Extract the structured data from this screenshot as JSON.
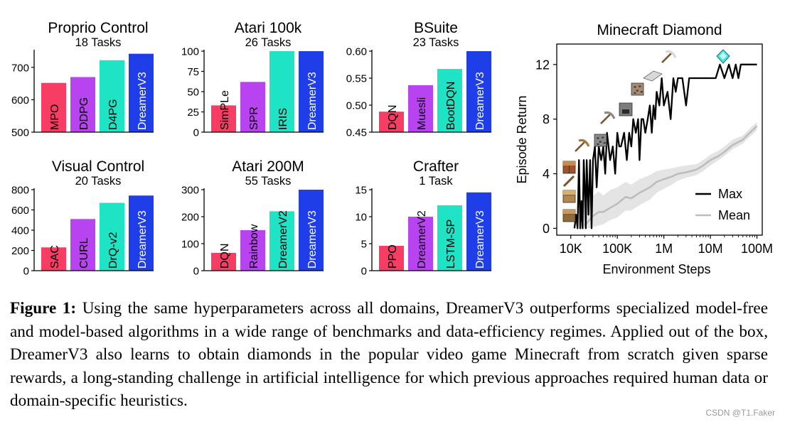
{
  "colors": {
    "red": "#f73d63",
    "purple": "#b744f0",
    "teal": "#1fe3c5",
    "blue": "#1f3ee8",
    "axis": "#000000",
    "max_line": "#000000",
    "mean_line": "#bdbdbd",
    "band": "#e4e4e4"
  },
  "chart_data": [
    {
      "type": "bar",
      "title": "Proprio Control",
      "subtitle": "18 Tasks",
      "categories": [
        "MPO",
        "DDPG",
        "D4PG",
        "DreamerV3"
      ],
      "values": [
        652,
        670,
        722,
        742
      ],
      "ylim": [
        500,
        750
      ],
      "yticks": [
        500,
        600,
        700
      ],
      "colors": [
        "red",
        "purple",
        "teal",
        "blue"
      ]
    },
    {
      "type": "bar",
      "title": "Atari 100k",
      "subtitle": "26 Tasks",
      "categories": [
        "SimPLe",
        "SPR",
        "IRIS",
        "DreamerV3"
      ],
      "values": [
        33,
        62,
        100,
        100
      ],
      "ylim": [
        0,
        100
      ],
      "yticks": [
        0,
        25,
        50,
        75,
        100
      ],
      "colors": [
        "red",
        "purple",
        "teal",
        "blue"
      ]
    },
    {
      "type": "bar",
      "title": "BSuite",
      "subtitle": "23 Tasks",
      "categories": [
        "DQN",
        "Muesli",
        "BootDQN",
        "DreamerV3"
      ],
      "values": [
        0.488,
        0.537,
        0.567,
        0.6
      ],
      "ylim": [
        0.45,
        0.6
      ],
      "yticks": [
        0.45,
        0.5,
        0.55,
        0.6
      ],
      "ytick_labels": [
        "0.45",
        "0.50",
        "0.55",
        "0.60"
      ],
      "colors": [
        "red",
        "purple",
        "teal",
        "blue"
      ]
    },
    {
      "type": "bar",
      "title": "Visual Control",
      "subtitle": "20 Tasks",
      "categories": [
        "SAC",
        "CURL",
        "DrQ-v2",
        "DreamerV3"
      ],
      "values": [
        230,
        510,
        670,
        742
      ],
      "ylim": [
        0,
        800
      ],
      "yticks": [
        0,
        200,
        400,
        600,
        800
      ],
      "colors": [
        "red",
        "purple",
        "teal",
        "blue"
      ]
    },
    {
      "type": "bar",
      "title": "Atari 200M",
      "subtitle": "55 Tasks",
      "categories": [
        "DQN",
        "Rainbow",
        "DreamerV2",
        "DreamerV3"
      ],
      "values": [
        66,
        150,
        220,
        300
      ],
      "ylim": [
        0,
        300
      ],
      "yticks": [
        0,
        100,
        200,
        300
      ],
      "colors": [
        "red",
        "purple",
        "teal",
        "blue"
      ]
    },
    {
      "type": "bar",
      "title": "Crafter",
      "subtitle": "1 Task",
      "categories": [
        "PPO",
        "DreamerV2",
        "LSTM-SP",
        "DreamerV3"
      ],
      "values": [
        4.6,
        10.0,
        12.1,
        14.5
      ],
      "ylim": [
        0,
        15
      ],
      "yticks": [
        0,
        5,
        10,
        15
      ],
      "colors": [
        "red",
        "purple",
        "teal",
        "blue"
      ]
    },
    {
      "type": "line",
      "title": "Minecraft Diamond",
      "xlabel": "Environment Steps",
      "ylabel": "Episode Return",
      "xscale": "log",
      "xlim": [
        5000,
        130000000
      ],
      "ylim": [
        -0.5,
        13.5
      ],
      "xticks": [
        10000,
        100000,
        1000000,
        10000000,
        100000000
      ],
      "xtick_labels": [
        "10K",
        "100K",
        "1M",
        "10M",
        "100M"
      ],
      "yticks": [
        0,
        4,
        8,
        12
      ],
      "legend": {
        "position": "bottom-right",
        "entries": [
          "Max",
          "Mean"
        ]
      },
      "series": [
        {
          "name": "Max",
          "color": "max_line",
          "x": [
            12000,
            13000,
            14000,
            15000,
            16000,
            17000,
            18000,
            19000,
            20000,
            21000,
            22000,
            24000,
            26000,
            28000,
            30000,
            33000,
            36000,
            40000,
            45000,
            50000,
            55000,
            60000,
            70000,
            80000,
            90000,
            100000,
            110000,
            120000,
            140000,
            160000,
            180000,
            200000,
            220000,
            250000,
            280000,
            300000,
            330000,
            360000,
            400000,
            450000,
            500000,
            550000,
            600000,
            650000,
            700000,
            800000,
            900000,
            1000000,
            1200000,
            1400000,
            1600000,
            1800000,
            2000000,
            2500000,
            3000000,
            3500000,
            4000000,
            5000000,
            6000000,
            7000000,
            8000000,
            10000000,
            13000000,
            16000000,
            20000000,
            25000000,
            30000000,
            35000000,
            40000000,
            45000000,
            50000000,
            60000000,
            70000000,
            80000000,
            100000000
          ],
          "y": [
            0,
            1,
            0,
            5,
            0,
            2,
            0,
            5,
            3,
            0,
            5,
            1,
            5,
            0,
            5,
            6,
            3,
            6,
            5,
            6,
            4,
            7,
            5,
            6,
            4,
            7,
            6,
            6,
            7,
            5,
            7,
            6,
            8,
            7,
            8,
            5,
            8,
            8,
            7,
            8,
            9,
            7,
            9,
            8,
            10,
            9,
            11,
            9,
            10,
            8,
            11,
            10,
            11,
            11,
            9,
            11,
            11,
            11,
            11,
            11,
            11,
            11,
            11,
            12,
            11,
            12,
            11,
            12,
            11,
            12,
            12,
            12,
            12,
            12,
            12
          ]
        },
        {
          "name": "Mean",
          "color": "mean_line",
          "x": [
            20000,
            25000,
            30000,
            40000,
            50000,
            70000,
            100000,
            150000,
            200000,
            300000,
            500000,
            700000,
            1000000,
            1500000,
            2000000,
            3000000,
            5000000,
            7000000,
            10000000,
            15000000,
            20000000,
            30000000,
            50000000,
            70000000,
            100000000
          ],
          "y": [
            0.2,
            0.6,
            0.9,
            1.2,
            1.2,
            1.5,
            1.8,
            2.3,
            2.2,
            2.6,
            3.0,
            3.4,
            3.6,
            3.8,
            4.0,
            4.1,
            4.3,
            4.6,
            5.0,
            5.3,
            5.6,
            6.1,
            6.5,
            7.0,
            7.5
          ],
          "band_low": [
            0.0,
            0.0,
            0.1,
            0.2,
            0.3,
            0.6,
            0.8,
            1.3,
            1.3,
            1.7,
            2.1,
            2.6,
            2.9,
            3.2,
            3.5,
            3.7,
            3.9,
            4.2,
            4.6,
            5.0,
            5.3,
            5.8,
            6.2,
            6.7,
            7.2
          ],
          "band_high": [
            1.5,
            2.0,
            2.4,
            2.7,
            2.4,
            2.8,
            3.0,
            3.4,
            3.2,
            3.6,
            3.9,
            4.2,
            4.3,
            4.4,
            4.5,
            4.6,
            4.7,
            5.0,
            5.4,
            5.7,
            6.0,
            6.5,
            6.8,
            7.3,
            7.8
          ]
        }
      ]
    }
  ],
  "caption": {
    "label": "Figure 1:",
    "text": "Using the same hyperparameters across all domains, DreamerV3 outperforms specialized model-free and model-based algorithms in a wide range of benchmarks and data-efficiency regimes. Applied out of the box, DreamerV3 also learns to obtain diamonds in the popular video game Minecraft from scratch given sparse rewards, a long-standing challenge in artificial intelligence for which previous approaches required human data or domain-specific heuristics."
  },
  "watermark": "CSDN @T1.Faker",
  "icons": [
    "crafting-table-icon",
    "stick-icon",
    "planks-icon",
    "log-icon",
    "wooden-pickaxe-icon",
    "cobblestone-icon",
    "stone-pickaxe-icon",
    "furnace-icon",
    "iron-ore-icon",
    "iron-ingot-icon",
    "iron-pickaxe-icon",
    "diamond-icon"
  ]
}
